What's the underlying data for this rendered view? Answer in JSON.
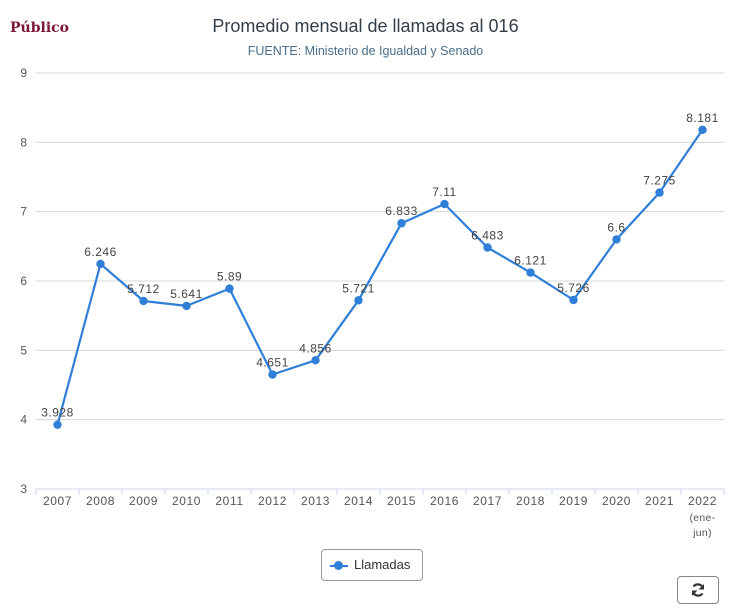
{
  "logo": "Público",
  "chart_data": {
    "type": "line",
    "title": "Promedio mensual de llamadas al 016",
    "subtitle": "FUENTE: Ministerio de Igualdad y Senado",
    "categories": [
      "2007",
      "2008",
      "2009",
      "2010",
      "2011",
      "2012",
      "2013",
      "2014",
      "2015",
      "2016",
      "2017",
      "2018",
      "2019",
      "2020",
      "2021",
      "2022 (ene-jun)"
    ],
    "category_lines": [
      [
        "2007"
      ],
      [
        "2008"
      ],
      [
        "2009"
      ],
      [
        "2010"
      ],
      [
        "2011"
      ],
      [
        "2012"
      ],
      [
        "2013"
      ],
      [
        "2014"
      ],
      [
        "2015"
      ],
      [
        "2016"
      ],
      [
        "2017"
      ],
      [
        "2018"
      ],
      [
        "2019"
      ],
      [
        "2020"
      ],
      [
        "2021"
      ],
      [
        "2022",
        "(ene-",
        "jun)"
      ]
    ],
    "series": [
      {
        "name": "Llamadas",
        "color": "#2f7ed8",
        "values": [
          3.928,
          6.246,
          5.712,
          5.641,
          5.89,
          4.651,
          4.856,
          5.721,
          6.833,
          7.11,
          6.483,
          6.121,
          5.726,
          6.6,
          7.275,
          8.181
        ]
      }
    ],
    "data_labels": [
      "3.928",
      "6.246",
      "5.712",
      "5.641",
      "5.89",
      "4.651",
      "4.856",
      "5.721",
      "6.833",
      "7.11",
      "6.483",
      "6.121",
      "5.726",
      "6.6",
      "7.275",
      "8.181"
    ],
    "ylim": [
      3,
      9
    ],
    "yticks": [
      3,
      4,
      5,
      6,
      7,
      8,
      9
    ],
    "grid": true,
    "legend_position": "bottom"
  },
  "controls": {
    "legend_label": "Llamadas",
    "refresh_icon": "refresh-icon"
  }
}
